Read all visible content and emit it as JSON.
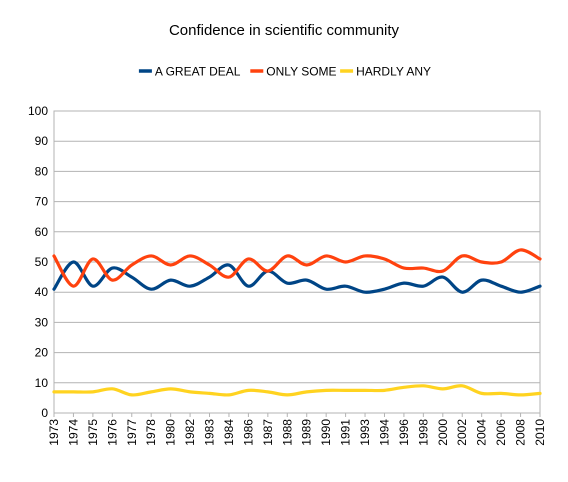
{
  "chart_data": {
    "type": "line",
    "title": "Confidence in scientific community",
    "xlabel": "",
    "ylabel": "",
    "ylim": [
      0,
      100
    ],
    "yticks": [
      0,
      10,
      20,
      30,
      40,
      50,
      60,
      70,
      80,
      90,
      100
    ],
    "grid": true,
    "legend_position": "top",
    "smooth": true,
    "categories": [
      "1973",
      "1974",
      "1975",
      "1976",
      "1977",
      "1978",
      "1980",
      "1982",
      "1983",
      "1984",
      "1986",
      "1987",
      "1988",
      "1989",
      "1990",
      "1991",
      "1993",
      "1994",
      "1996",
      "1998",
      "2000",
      "2002",
      "2004",
      "2006",
      "2008",
      "2010"
    ],
    "series": [
      {
        "name": "A GREAT DEAL",
        "color": "#004586",
        "values": [
          41,
          50,
          42,
          48,
          45,
          41,
          44,
          42,
          45,
          49,
          42,
          47,
          43,
          44,
          41,
          42,
          40,
          41,
          43,
          42,
          45,
          40,
          44,
          42,
          40,
          42
        ]
      },
      {
        "name": "ONLY SOME",
        "color": "#ff420e",
        "values": [
          52,
          42,
          51,
          44,
          49,
          52,
          49,
          52,
          49,
          45,
          51,
          47,
          52,
          49,
          52,
          50,
          52,
          51,
          48,
          48,
          47,
          52,
          50,
          50,
          54,
          51
        ]
      },
      {
        "name": "HARDLY ANY",
        "color": "#ffd320",
        "values": [
          7,
          7,
          7,
          8,
          6,
          7,
          8,
          7,
          6.5,
          6,
          7.5,
          7,
          6,
          7,
          7.5,
          7.5,
          7.5,
          7.5,
          8.5,
          9,
          8,
          9,
          6.5,
          6.5,
          6,
          6.5
        ]
      }
    ]
  }
}
